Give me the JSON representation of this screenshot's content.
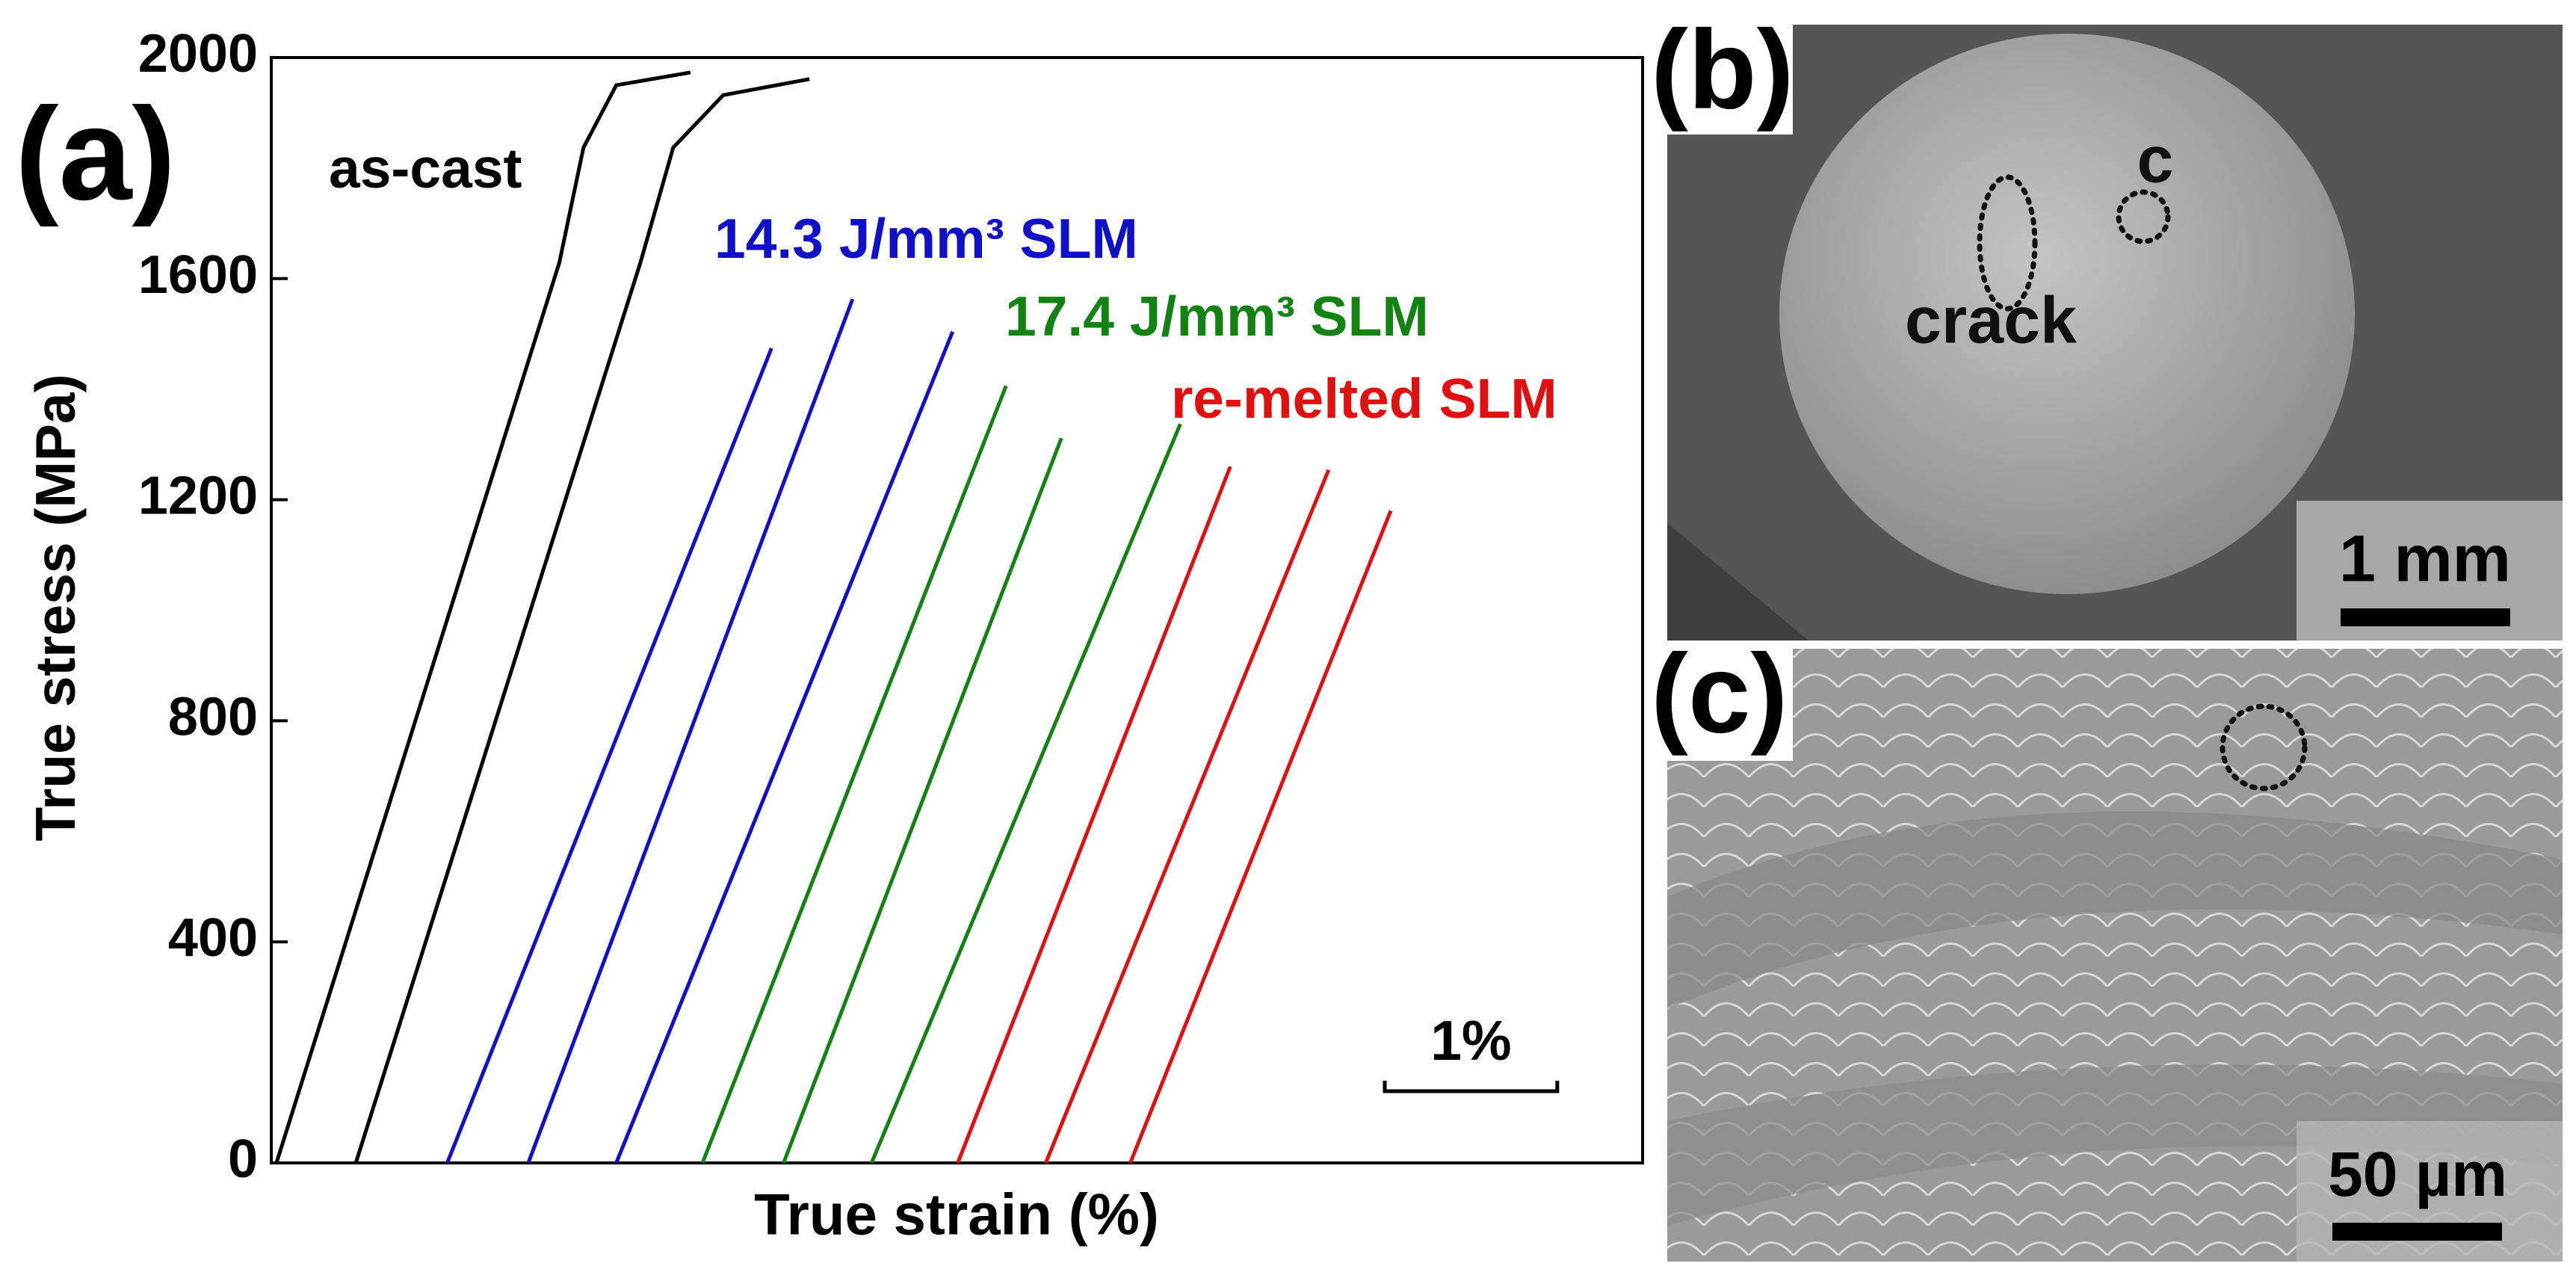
{
  "chart_data": {
    "type": "line",
    "panel_label": "(a)",
    "ylabel": "True stress (MPa)",
    "xlabel": "True strain (%)",
    "xlim": [
      0,
      7.95
    ],
    "ylim": [
      0,
      2000
    ],
    "yticks": [
      0,
      400,
      800,
      1200,
      1600,
      2000
    ],
    "series": [
      {
        "color": "#000000",
        "x": [
          0.03,
          1.67,
          1.81,
          2.0,
          2.43
        ],
        "values": [
          0,
          1629,
          1837,
          1950,
          1973
        ]
      },
      {
        "color": "#000000",
        "x": [
          0.49,
          2.14,
          2.33,
          2.62,
          3.12
        ],
        "values": [
          0,
          1629,
          1837,
          1932,
          1961
        ]
      },
      {
        "color": "#1010c8",
        "x": [
          1.02,
          2.9
        ],
        "values": [
          0,
          1474
        ]
      },
      {
        "color": "#1010c8",
        "x": [
          1.49,
          3.37
        ],
        "values": [
          0,
          1563
        ]
      },
      {
        "color": "#1010c8",
        "x": [
          2.0,
          3.95
        ],
        "values": [
          0,
          1504
        ]
      },
      {
        "color": "#128212",
        "x": [
          2.5,
          4.26
        ],
        "values": [
          0,
          1406
        ]
      },
      {
        "color": "#128212",
        "x": [
          2.97,
          4.58
        ],
        "values": [
          0,
          1311
        ]
      },
      {
        "color": "#128212",
        "x": [
          3.48,
          5.27
        ],
        "values": [
          0,
          1337
        ]
      },
      {
        "color": "#e01010",
        "x": [
          3.98,
          5.56
        ],
        "values": [
          0,
          1260
        ]
      },
      {
        "color": "#e01010",
        "x": [
          4.49,
          6.13
        ],
        "values": [
          0,
          1254
        ]
      },
      {
        "color": "#e01010",
        "x": [
          4.98,
          6.49
        ],
        "values": [
          0,
          1180
        ]
      }
    ],
    "annotations": [
      {
        "text": "as-cast",
        "color": "#000000"
      },
      {
        "text": "14.3 J/mm³ SLM",
        "color": "#1010c8"
      },
      {
        "text": "17.4 J/mm³ SLM",
        "color": "#128212"
      },
      {
        "text": "re-melted SLM",
        "color": "#e01010"
      }
    ],
    "scale_bar": {
      "label": "1%",
      "length": 1
    }
  },
  "panels": {
    "b": {
      "label": "(b)",
      "crack": "crack",
      "c": "c",
      "scale": "1 mm"
    },
    "c": {
      "label": "(c)",
      "scale": "50 µm"
    }
  }
}
